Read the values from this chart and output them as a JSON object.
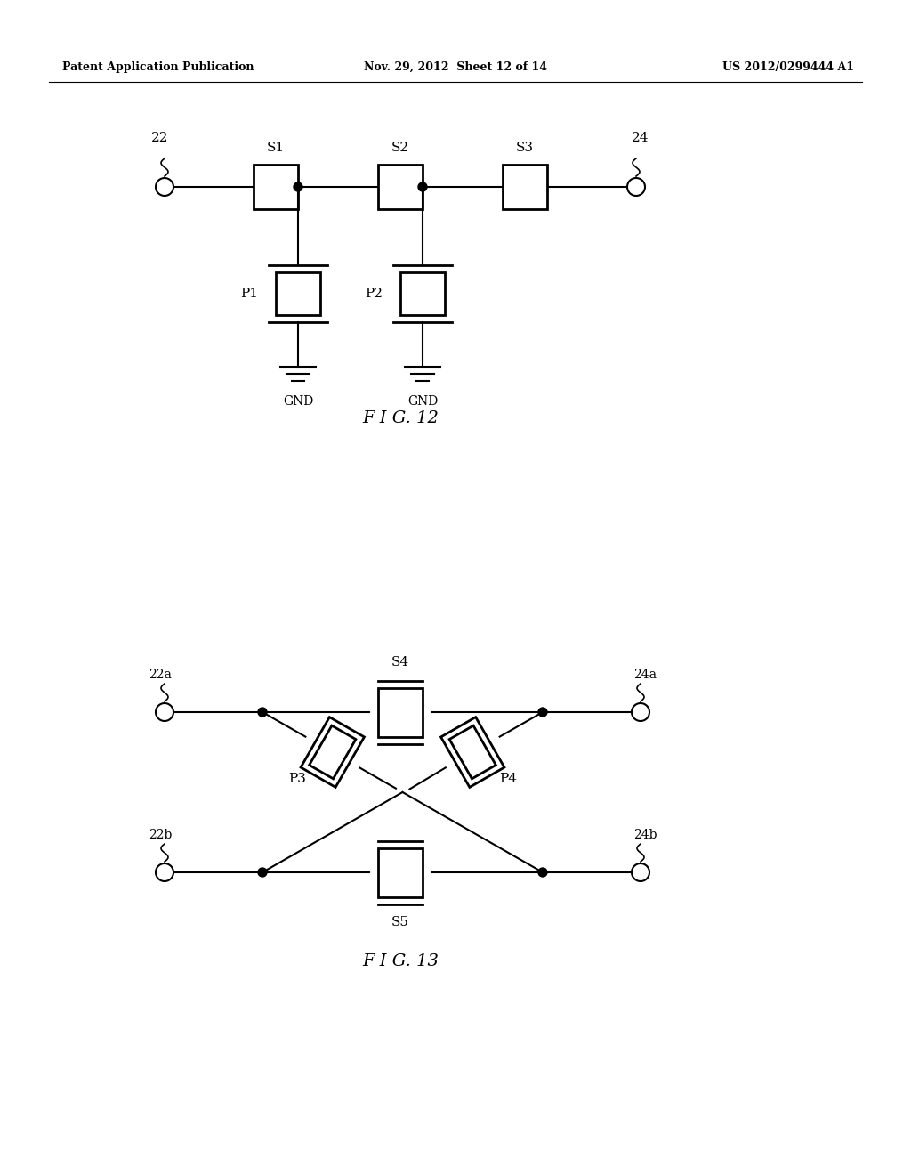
{
  "header_left": "Patent Application Publication",
  "header_mid": "Nov. 29, 2012  Sheet 12 of 14",
  "header_right": "US 2012/0299444 A1",
  "fig12_label": "F I G. 12",
  "fig13_label": "F I G. 13",
  "bg_color": "#ffffff",
  "line_color": "#000000"
}
